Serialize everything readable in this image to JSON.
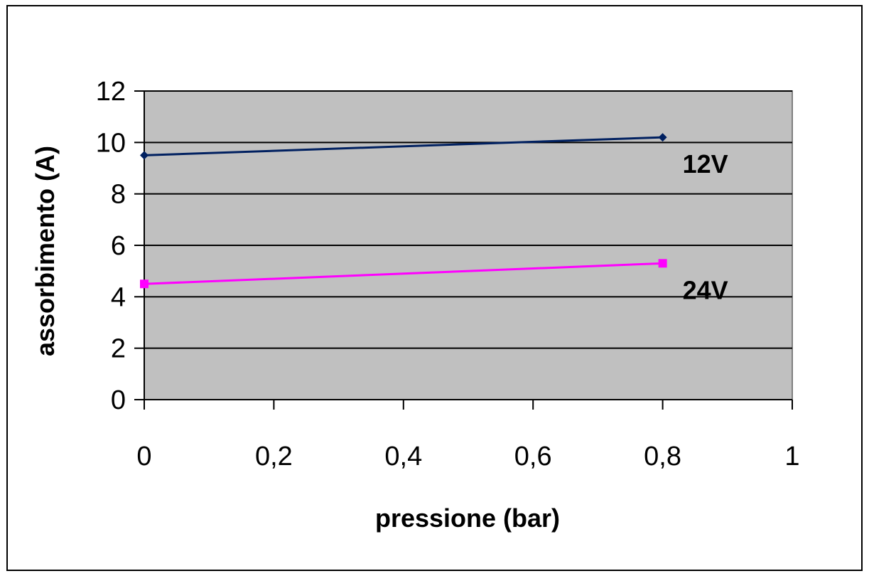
{
  "chart_data": {
    "type": "line",
    "title": "",
    "xlabel": "pressione (bar)",
    "ylabel": "assorbimento (A)",
    "xlim": [
      0,
      1
    ],
    "ylim": [
      0,
      12
    ],
    "x_ticks": [
      "0",
      "0,2",
      "0,4",
      "0,6",
      "0,8",
      "1"
    ],
    "y_ticks": [
      "0",
      "2",
      "4",
      "6",
      "8",
      "10",
      "12"
    ],
    "grid": "horizontal",
    "plot_background": "#c0c0c0",
    "series": [
      {
        "name": "12V",
        "x": [
          0,
          0.8
        ],
        "y": [
          9.5,
          10.2
        ],
        "color": "#002060",
        "marker": "diamond"
      },
      {
        "name": "24V",
        "x": [
          0,
          0.8
        ],
        "y": [
          4.5,
          5.3
        ],
        "color": "#ff00ff",
        "marker": "square"
      }
    ]
  }
}
